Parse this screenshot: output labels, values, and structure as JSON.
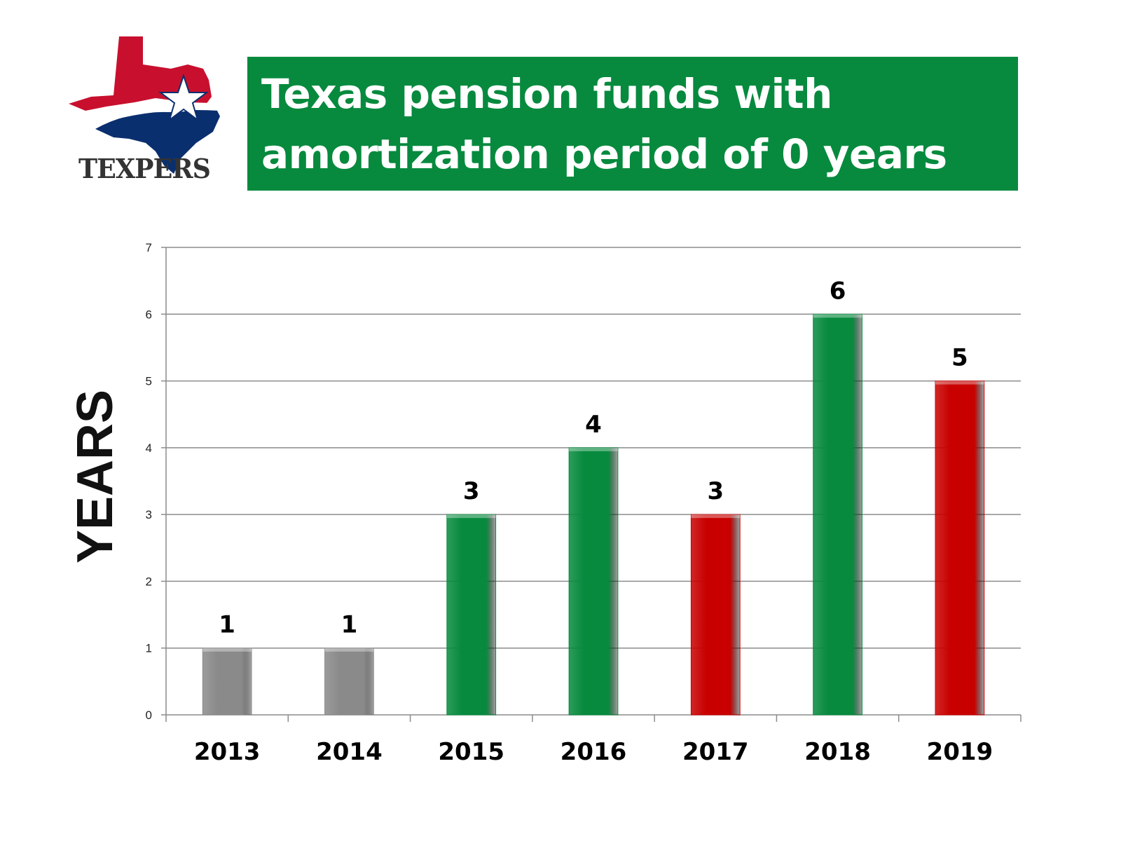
{
  "logo": {
    "text": "TEXPERS"
  },
  "title": {
    "line1": "Texas pension funds with",
    "line2": "amortization period of 0 years"
  },
  "colors": {
    "banner": "#078a3e",
    "gray_bar": "#8a8a8a",
    "green_bar": "#078a3e",
    "red_bar": "#c80000",
    "logo_red": "#c8102e",
    "logo_blue": "#0a2f6e"
  },
  "chart_data": {
    "type": "bar",
    "categories": [
      "2013",
      "2014",
      "2015",
      "2016",
      "2017",
      "2018",
      "2019"
    ],
    "values": [
      1,
      1,
      3,
      4,
      3,
      6,
      5
    ],
    "bar_colors": [
      "gray",
      "gray",
      "green",
      "green",
      "red",
      "green",
      "red"
    ],
    "ylabel": "YEARS",
    "ylim": [
      0,
      7
    ],
    "yticks": [
      0,
      1,
      2,
      3,
      4,
      5,
      6,
      7
    ],
    "grid": true,
    "legend": "none"
  }
}
